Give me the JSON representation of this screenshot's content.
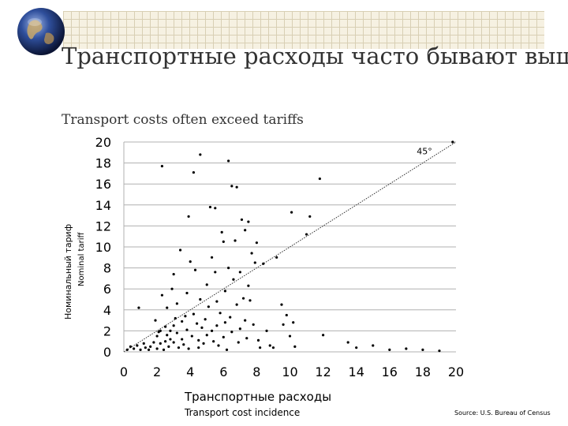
{
  "slide": {
    "title": "Транспортные расходы часто бывают выше тарифов",
    "subtitle": "Transport costs often exceed tariffs",
    "source": "Source: U.S. Bureau of Census"
  },
  "chart_data": {
    "type": "scatter",
    "xlabel": "Транспортные расходы",
    "xlabel_sub": "Transport cost incidence",
    "ylabel": "Номинальный тариф",
    "ylabel_sub": "Nominal tariff",
    "xlim": [
      0,
      20
    ],
    "ylim": [
      0,
      20
    ],
    "xticks": [
      "0",
      "2",
      "4",
      "6",
      "8",
      "10",
      "12",
      "14",
      "16",
      "18",
      "20"
    ],
    "yticks": [
      "0",
      "2",
      "4",
      "6",
      "8",
      "10",
      "12",
      "14",
      "16",
      "18",
      "20"
    ],
    "grid": "horizontal",
    "reference_line": {
      "x": [
        0,
        20
      ],
      "y": [
        0,
        20
      ],
      "style": "dotted",
      "label": "45°"
    },
    "series": [
      {
        "color": "#000000",
        "points": [
          [
            0.2,
            0.2
          ],
          [
            0.4,
            0.5
          ],
          [
            0.6,
            0.3
          ],
          [
            0.8,
            0.6
          ],
          [
            0.9,
            4.2
          ],
          [
            1.0,
            0.2
          ],
          [
            1.2,
            0.8
          ],
          [
            1.3,
            0.4
          ],
          [
            1.5,
            0.2
          ],
          [
            1.6,
            0.5
          ],
          [
            1.8,
            0.9
          ],
          [
            1.9,
            3.0
          ],
          [
            2.0,
            1.5
          ],
          [
            2.0,
            0.3
          ],
          [
            2.1,
            1.9
          ],
          [
            2.2,
            0.8
          ],
          [
            2.2,
            2.0
          ],
          [
            2.3,
            17.7
          ],
          [
            2.3,
            5.4
          ],
          [
            2.4,
            0.2
          ],
          [
            2.5,
            1.0
          ],
          [
            2.5,
            2.4
          ],
          [
            2.6,
            1.6
          ],
          [
            2.6,
            4.2
          ],
          [
            2.7,
            0.5
          ],
          [
            2.8,
            2.0
          ],
          [
            2.8,
            1.2
          ],
          [
            2.9,
            6.0
          ],
          [
            3.0,
            7.4
          ],
          [
            3.0,
            0.9
          ],
          [
            3.0,
            2.5
          ],
          [
            3.1,
            3.2
          ],
          [
            3.2,
            4.6
          ],
          [
            3.2,
            1.8
          ],
          [
            3.3,
            0.4
          ],
          [
            3.4,
            9.7
          ],
          [
            3.5,
            2.9
          ],
          [
            3.5,
            1.2
          ],
          [
            3.6,
            0.7
          ],
          [
            3.7,
            3.4
          ],
          [
            3.8,
            5.6
          ],
          [
            3.8,
            2.1
          ],
          [
            3.9,
            12.9
          ],
          [
            3.9,
            0.3
          ],
          [
            4.0,
            8.6
          ],
          [
            4.1,
            1.5
          ],
          [
            4.2,
            3.6
          ],
          [
            4.2,
            17.1
          ],
          [
            4.3,
            7.8
          ],
          [
            4.4,
            2.7
          ],
          [
            4.5,
            1.1
          ],
          [
            4.5,
            0.4
          ],
          [
            4.6,
            5.0
          ],
          [
            4.6,
            18.8
          ],
          [
            4.7,
            2.3
          ],
          [
            4.8,
            0.8
          ],
          [
            4.9,
            3.1
          ],
          [
            5.0,
            6.4
          ],
          [
            5.0,
            1.6
          ],
          [
            5.1,
            4.3
          ],
          [
            5.2,
            13.8
          ],
          [
            5.3,
            2.0
          ],
          [
            5.3,
            9.0
          ],
          [
            5.4,
            1.0
          ],
          [
            5.5,
            13.7
          ],
          [
            5.5,
            7.6
          ],
          [
            5.6,
            4.8
          ],
          [
            5.6,
            2.5
          ],
          [
            5.7,
            0.6
          ],
          [
            5.8,
            3.7
          ],
          [
            5.9,
            11.4
          ],
          [
            6.0,
            10.5
          ],
          [
            6.0,
            1.4
          ],
          [
            6.1,
            5.8
          ],
          [
            6.1,
            2.8
          ],
          [
            6.2,
            0.2
          ],
          [
            6.3,
            8.0
          ],
          [
            6.3,
            18.2
          ],
          [
            6.4,
            3.3
          ],
          [
            6.5,
            15.8
          ],
          [
            6.5,
            1.9
          ],
          [
            6.6,
            6.9
          ],
          [
            6.7,
            10.6
          ],
          [
            6.8,
            4.5
          ],
          [
            6.8,
            15.7
          ],
          [
            6.9,
            0.9
          ],
          [
            7.0,
            7.6
          ],
          [
            7.0,
            2.2
          ],
          [
            7.1,
            12.6
          ],
          [
            7.2,
            5.1
          ],
          [
            7.3,
            11.6
          ],
          [
            7.3,
            3.0
          ],
          [
            7.4,
            1.3
          ],
          [
            7.5,
            6.3
          ],
          [
            7.5,
            12.4
          ],
          [
            7.6,
            4.9
          ],
          [
            7.7,
            9.4
          ],
          [
            7.8,
            2.6
          ],
          [
            7.9,
            8.5
          ],
          [
            8.0,
            10.4
          ],
          [
            8.1,
            1.1
          ],
          [
            8.2,
            0.4
          ],
          [
            8.4,
            8.4
          ],
          [
            8.6,
            2.0
          ],
          [
            8.8,
            0.6
          ],
          [
            9.0,
            0.4
          ],
          [
            9.2,
            9.0
          ],
          [
            9.5,
            4.5
          ],
          [
            9.6,
            2.6
          ],
          [
            9.8,
            3.5
          ],
          [
            10.0,
            1.5
          ],
          [
            10.1,
            13.3
          ],
          [
            10.2,
            2.8
          ],
          [
            10.3,
            0.5
          ],
          [
            11.0,
            11.2
          ],
          [
            11.2,
            12.9
          ],
          [
            11.8,
            16.5
          ],
          [
            12.0,
            1.6
          ],
          [
            13.5,
            0.9
          ],
          [
            14.0,
            0.4
          ],
          [
            15.0,
            0.6
          ],
          [
            16.0,
            0.2
          ],
          [
            17.0,
            0.3
          ],
          [
            18.0,
            0.2
          ],
          [
            19.0,
            0.1
          ],
          [
            19.8,
            20.0
          ]
        ]
      }
    ]
  }
}
